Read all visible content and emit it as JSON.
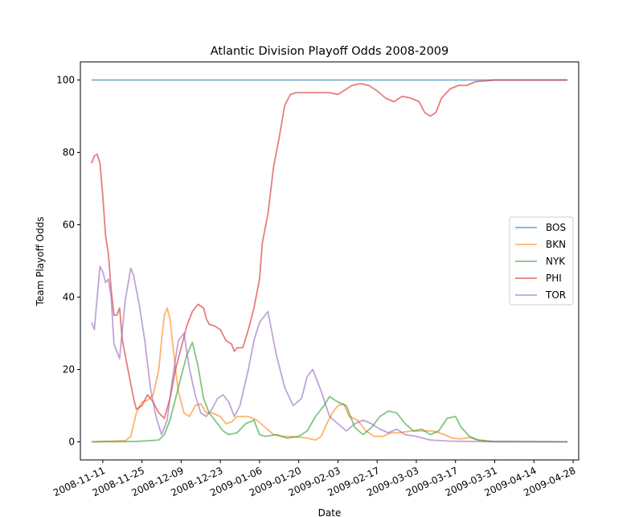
{
  "chart_data": {
    "type": "line",
    "title": "Atlantic Division Playoff Odds 2008-2009",
    "xlabel": "Date",
    "ylabel": "Team Playoff Odds",
    "x_start": "2008-11-07",
    "x_end": "2009-04-26",
    "xlim": [
      "2008-11-03",
      "2009-04-30"
    ],
    "ylim": [
      -5,
      105
    ],
    "x_ticks": [
      "2008-11-11",
      "2008-11-25",
      "2008-12-09",
      "2008-12-23",
      "2009-01-06",
      "2009-01-20",
      "2009-02-03",
      "2009-02-17",
      "2009-03-03",
      "2009-03-17",
      "2009-03-31",
      "2009-04-14",
      "2009-04-28"
    ],
    "y_ticks": [
      0,
      20,
      40,
      60,
      80,
      100
    ],
    "grid": false,
    "legend_position": "center right",
    "series": [
      {
        "name": "BOS",
        "color": "#1f77b4",
        "points": [
          [
            "2008-11-07",
            100
          ],
          [
            "2009-04-26",
            100
          ]
        ]
      },
      {
        "name": "BKN",
        "color": "#ff7f0e",
        "points": [
          [
            "2008-11-07",
            0
          ],
          [
            "2008-11-19",
            0.3
          ],
          [
            "2008-11-21",
            1.5
          ],
          [
            "2008-11-23",
            8
          ],
          [
            "2008-11-25",
            11
          ],
          [
            "2008-11-27",
            11.5
          ],
          [
            "2008-11-29",
            13
          ],
          [
            "2008-12-01",
            20
          ],
          [
            "2008-12-02",
            28
          ],
          [
            "2008-12-03",
            35
          ],
          [
            "2008-12-04",
            37
          ],
          [
            "2008-12-05",
            34
          ],
          [
            "2008-12-07",
            20
          ],
          [
            "2008-12-08",
            14
          ],
          [
            "2008-12-10",
            8
          ],
          [
            "2008-12-12",
            7
          ],
          [
            "2008-12-14",
            10
          ],
          [
            "2008-12-16",
            10.5
          ],
          [
            "2008-12-18",
            8
          ],
          [
            "2008-12-20",
            8
          ],
          [
            "2008-12-23",
            7
          ],
          [
            "2008-12-25",
            5
          ],
          [
            "2008-12-27",
            5.5
          ],
          [
            "2008-12-29",
            7
          ],
          [
            "2009-01-02",
            7
          ],
          [
            "2009-01-05",
            6
          ],
          [
            "2009-01-08",
            4
          ],
          [
            "2009-01-11",
            2
          ],
          [
            "2009-01-14",
            1.5
          ],
          [
            "2009-01-17",
            1.5
          ],
          [
            "2009-01-20",
            1.3
          ],
          [
            "2009-01-23",
            1
          ],
          [
            "2009-01-26",
            0.5
          ],
          [
            "2009-01-28",
            1.5
          ],
          [
            "2009-01-30",
            5
          ],
          [
            "2009-02-01",
            8
          ],
          [
            "2009-02-03",
            10
          ],
          [
            "2009-02-05",
            10.5
          ],
          [
            "2009-02-07",
            7
          ],
          [
            "2009-02-10",
            6
          ],
          [
            "2009-02-13",
            3
          ],
          [
            "2009-02-16",
            1.5
          ],
          [
            "2009-02-19",
            1.5
          ],
          [
            "2009-02-22",
            2.5
          ],
          [
            "2009-02-25",
            2.5
          ],
          [
            "2009-03-01",
            3
          ],
          [
            "2009-03-05",
            3
          ],
          [
            "2009-03-09",
            3
          ],
          [
            "2009-03-13",
            2
          ],
          [
            "2009-03-16",
            1
          ],
          [
            "2009-03-19",
            0.8
          ],
          [
            "2009-03-22",
            1.2
          ],
          [
            "2009-03-25",
            0.5
          ],
          [
            "2009-03-30",
            0.1
          ],
          [
            "2009-04-26",
            0
          ]
        ]
      },
      {
        "name": "NYK",
        "color": "#2ca02c",
        "points": [
          [
            "2008-11-07",
            0
          ],
          [
            "2008-11-23",
            0.1
          ],
          [
            "2008-11-27",
            0.3
          ],
          [
            "2008-12-01",
            0.5
          ],
          [
            "2008-12-03",
            2
          ],
          [
            "2008-12-05",
            6
          ],
          [
            "2008-12-07",
            12
          ],
          [
            "2008-12-09",
            18
          ],
          [
            "2008-12-11",
            24
          ],
          [
            "2008-12-13",
            27.5
          ],
          [
            "2008-12-15",
            21
          ],
          [
            "2008-12-17",
            12
          ],
          [
            "2008-12-19",
            8
          ],
          [
            "2008-12-21",
            6
          ],
          [
            "2008-12-24",
            3
          ],
          [
            "2008-12-26",
            2
          ],
          [
            "2008-12-29",
            2.5
          ],
          [
            "2009-01-01",
            5
          ],
          [
            "2009-01-04",
            6
          ],
          [
            "2009-01-06",
            2
          ],
          [
            "2009-01-08",
            1.5
          ],
          [
            "2009-01-12",
            2
          ],
          [
            "2009-01-16",
            1
          ],
          [
            "2009-01-20",
            1.5
          ],
          [
            "2009-01-23",
            3
          ],
          [
            "2009-01-26",
            7
          ],
          [
            "2009-01-29",
            10
          ],
          [
            "2009-01-31",
            12.5
          ],
          [
            "2009-02-03",
            11
          ],
          [
            "2009-02-06",
            10
          ],
          [
            "2009-02-09",
            4
          ],
          [
            "2009-02-12",
            2
          ],
          [
            "2009-02-15",
            4
          ],
          [
            "2009-02-18",
            7
          ],
          [
            "2009-02-21",
            8.5
          ],
          [
            "2009-02-24",
            8
          ],
          [
            "2009-02-27",
            5
          ],
          [
            "2009-03-02",
            3
          ],
          [
            "2009-03-05",
            3.5
          ],
          [
            "2009-03-08",
            2
          ],
          [
            "2009-03-11",
            3
          ],
          [
            "2009-03-14",
            6.5
          ],
          [
            "2009-03-17",
            7
          ],
          [
            "2009-03-19",
            4
          ],
          [
            "2009-03-22",
            1.5
          ],
          [
            "2009-03-25",
            0.5
          ],
          [
            "2009-03-30",
            0.1
          ],
          [
            "2009-04-26",
            0
          ]
        ]
      },
      {
        "name": "PHI",
        "color": "#d62728",
        "points": [
          [
            "2008-11-07",
            77
          ],
          [
            "2008-11-08",
            79
          ],
          [
            "2008-11-09",
            79.5
          ],
          [
            "2008-11-10",
            77
          ],
          [
            "2008-11-11",
            68
          ],
          [
            "2008-11-12",
            57
          ],
          [
            "2008-11-13",
            52
          ],
          [
            "2008-11-14",
            42
          ],
          [
            "2008-11-15",
            35
          ],
          [
            "2008-11-16",
            35
          ],
          [
            "2008-11-17",
            37
          ],
          [
            "2008-11-18",
            28
          ],
          [
            "2008-11-20",
            20
          ],
          [
            "2008-11-22",
            12
          ],
          [
            "2008-11-23",
            9
          ],
          [
            "2008-11-25",
            10
          ],
          [
            "2008-11-27",
            13
          ],
          [
            "2008-11-29",
            11
          ],
          [
            "2008-12-01",
            8
          ],
          [
            "2008-12-03",
            6.5
          ],
          [
            "2008-12-05",
            12
          ],
          [
            "2008-12-07",
            20
          ],
          [
            "2008-12-09",
            26
          ],
          [
            "2008-12-11",
            32
          ],
          [
            "2008-12-13",
            36
          ],
          [
            "2008-12-15",
            38
          ],
          [
            "2008-12-17",
            37
          ],
          [
            "2008-12-18",
            34
          ],
          [
            "2008-12-19",
            32.5
          ],
          [
            "2008-12-21",
            32
          ],
          [
            "2008-12-23",
            31
          ],
          [
            "2008-12-25",
            28
          ],
          [
            "2008-12-27",
            27
          ],
          [
            "2008-12-28",
            25
          ],
          [
            "2008-12-29",
            26
          ],
          [
            "2008-12-31",
            26
          ],
          [
            "2009-01-02",
            31
          ],
          [
            "2009-01-04",
            37
          ],
          [
            "2009-01-06",
            45
          ],
          [
            "2009-01-07",
            55
          ],
          [
            "2009-01-09",
            63
          ],
          [
            "2009-01-11",
            76
          ],
          [
            "2009-01-13",
            84
          ],
          [
            "2009-01-15",
            93
          ],
          [
            "2009-01-17",
            96
          ],
          [
            "2009-01-19",
            96.5
          ],
          [
            "2009-01-23",
            96.5
          ],
          [
            "2009-01-27",
            96.5
          ],
          [
            "2009-01-31",
            96.5
          ],
          [
            "2009-02-03",
            96
          ],
          [
            "2009-02-05",
            97
          ],
          [
            "2009-02-08",
            98.5
          ],
          [
            "2009-02-11",
            99
          ],
          [
            "2009-02-14",
            98.5
          ],
          [
            "2009-02-17",
            97
          ],
          [
            "2009-02-20",
            95
          ],
          [
            "2009-02-23",
            94
          ],
          [
            "2009-02-26",
            95.5
          ],
          [
            "2009-03-01",
            95
          ],
          [
            "2009-03-04",
            94
          ],
          [
            "2009-03-06",
            91
          ],
          [
            "2009-03-08",
            90
          ],
          [
            "2009-03-10",
            91
          ],
          [
            "2009-03-12",
            95
          ],
          [
            "2009-03-15",
            97.5
          ],
          [
            "2009-03-18",
            98.5
          ],
          [
            "2009-03-21",
            98.5
          ],
          [
            "2009-03-24",
            99.5
          ],
          [
            "2009-03-31",
            100
          ],
          [
            "2009-04-26",
            100
          ]
        ]
      },
      {
        "name": "TOR",
        "color": "#9467bd",
        "points": [
          [
            "2008-11-07",
            33
          ],
          [
            "2008-11-08",
            31
          ],
          [
            "2008-11-09",
            40
          ],
          [
            "2008-11-10",
            48.5
          ],
          [
            "2008-11-11",
            47
          ],
          [
            "2008-11-12",
            44
          ],
          [
            "2008-11-13",
            45
          ],
          [
            "2008-11-14",
            40
          ],
          [
            "2008-11-15",
            27
          ],
          [
            "2008-11-17",
            23
          ],
          [
            "2008-11-19",
            39
          ],
          [
            "2008-11-21",
            48
          ],
          [
            "2008-11-22",
            46
          ],
          [
            "2008-11-24",
            38
          ],
          [
            "2008-11-26",
            28
          ],
          [
            "2008-11-28",
            15
          ],
          [
            "2008-11-30",
            7
          ],
          [
            "2008-12-02",
            2
          ],
          [
            "2008-12-04",
            6
          ],
          [
            "2008-12-06",
            18
          ],
          [
            "2008-12-08",
            28
          ],
          [
            "2008-12-10",
            30
          ],
          [
            "2008-12-12",
            20
          ],
          [
            "2008-12-14",
            13
          ],
          [
            "2008-12-16",
            8
          ],
          [
            "2008-12-18",
            7
          ],
          [
            "2008-12-20",
            9
          ],
          [
            "2008-12-22",
            12
          ],
          [
            "2008-12-24",
            13
          ],
          [
            "2008-12-26",
            11
          ],
          [
            "2008-12-28",
            7
          ],
          [
            "2008-12-30",
            10
          ],
          [
            "2009-01-02",
            20
          ],
          [
            "2009-01-04",
            28
          ],
          [
            "2009-01-06",
            33
          ],
          [
            "2009-01-09",
            36
          ],
          [
            "2009-01-12",
            24
          ],
          [
            "2009-01-15",
            15
          ],
          [
            "2009-01-18",
            10
          ],
          [
            "2009-01-21",
            12
          ],
          [
            "2009-01-23",
            18
          ],
          [
            "2009-01-25",
            20
          ],
          [
            "2009-01-28",
            14
          ],
          [
            "2009-01-31",
            7
          ],
          [
            "2009-02-03",
            5
          ],
          [
            "2009-02-06",
            3
          ],
          [
            "2009-02-09",
            5
          ],
          [
            "2009-02-12",
            6
          ],
          [
            "2009-02-15",
            5
          ],
          [
            "2009-02-18",
            3.5
          ],
          [
            "2009-02-21",
            2.5
          ],
          [
            "2009-02-24",
            3.5
          ],
          [
            "2009-02-27",
            2
          ],
          [
            "2009-03-03",
            1.5
          ],
          [
            "2009-03-08",
            0.5
          ],
          [
            "2009-03-15",
            0.2
          ],
          [
            "2009-03-31",
            0
          ],
          [
            "2009-04-26",
            0
          ]
        ]
      }
    ]
  }
}
